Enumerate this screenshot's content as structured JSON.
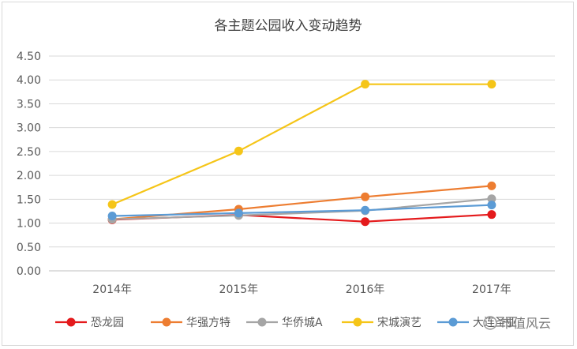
{
  "chart_data": {
    "type": "line",
    "title": "各主题公园收入变动趋势",
    "xlabel": "",
    "ylabel": "",
    "categories": [
      "2014年",
      "2015年",
      "2016年",
      "2017年"
    ],
    "ylim": [
      0,
      4.5
    ],
    "yticks": [
      "0.00",
      "0.50",
      "1.00",
      "1.50",
      "2.00",
      "2.50",
      "3.00",
      "3.50",
      "4.00",
      "4.50"
    ],
    "grid": true,
    "legend_position": "bottom",
    "series": [
      {
        "name": "恐龙园",
        "color": "#e41a1c",
        "values": [
          1.07,
          1.17,
          1.03,
          1.18
        ]
      },
      {
        "name": "华强方特",
        "color": "#ed7d31",
        "values": [
          1.08,
          1.29,
          1.55,
          1.78
        ]
      },
      {
        "name": "华侨城A",
        "color": "#a5a5a5",
        "values": [
          1.08,
          1.16,
          1.26,
          1.51
        ]
      },
      {
        "name": "宋城演艺",
        "color": "#f5c518",
        "values": [
          1.39,
          2.51,
          3.91,
          3.91
        ]
      },
      {
        "name": "大连圣亚",
        "color": "#5b9bd5",
        "values": [
          1.15,
          1.21,
          1.27,
          1.38
        ]
      }
    ]
  },
  "watermark": "市值风云"
}
